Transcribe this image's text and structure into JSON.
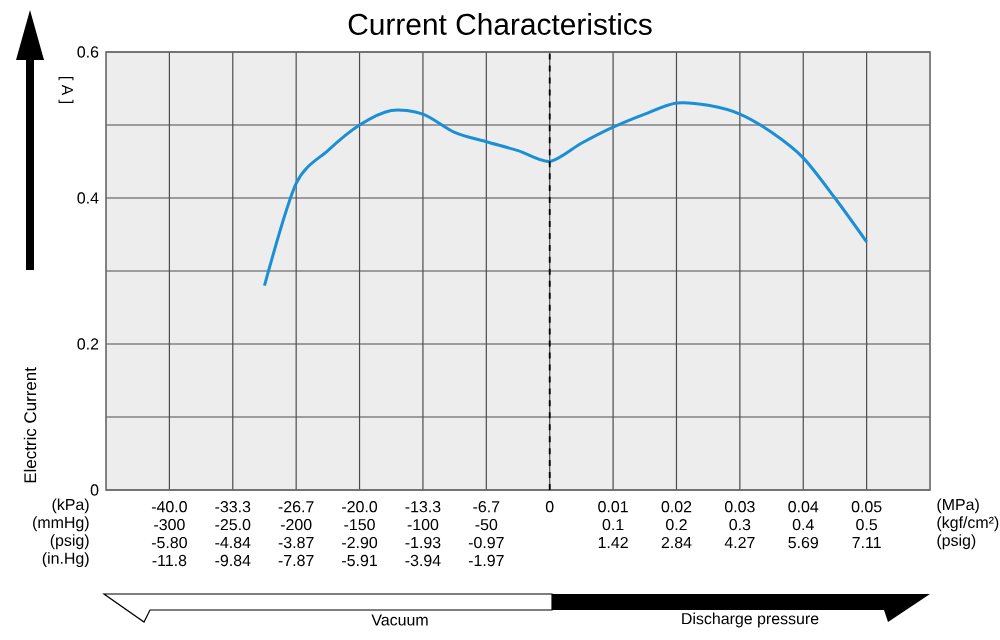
{
  "chart_data": {
    "type": "line",
    "title": "Current Characteristics",
    "ylabel": "Electric Current",
    "categories": [
      null,
      null,
      "-40.0\n-300\n-5.80\n-11.8",
      null,
      "-33.3\n-25.0\n-4.84\n-9.84",
      null,
      "-26.7\n-200\n-3.87\n-7.87",
      null,
      "-20.0\n-150\n-2.90\n-5.91",
      null,
      "-13.3\n-100\n-1.93\n-3.94",
      null,
      "-6.7\n-50\n-0.97\n-1.97",
      null,
      "0",
      null,
      "0.01\n0.1\n1.42",
      null,
      "0.02\n0.2\n2.84",
      null,
      "0.03\n0.3\n4.27",
      null,
      "0.04\n0.4\n5.69",
      null,
      "0.05\n0.5\n7.11",
      null,
      null
    ],
    "series": [
      {
        "color": "#1a8fd6",
        "values": [
          null,
          null,
          null,
          null,
          null,
          0.28,
          0.42,
          0.465,
          0.5,
          0.52,
          0.515,
          0.49,
          0.477,
          0.465,
          0.45,
          0.475,
          0.497,
          0.515,
          0.53,
          0.527,
          0.515,
          0.49,
          0.455,
          0.4,
          0.34,
          null,
          null
        ]
      }
    ],
    "ylim": [
      0,
      0.6
    ],
    "yticks": [
      0,
      {
        "value": 0.1,
        "label": null
      },
      0.2,
      {
        "value": 0.3,
        "label": null
      },
      0.4,
      {
        "value": 0.5,
        "label": null
      },
      0.6
    ],
    "grid": true,
    "ref_lines": [
      {
        "axis": "x",
        "value": "0",
        "line_style": "dashed"
      }
    ],
    "annotations": [
      "[ A ]",
      "(kPa)\n(mmHg)\n(psig)\n(in.Hg)",
      "(MPa)\n(kgf/cm²)\n(psig)",
      "Vacuum",
      "Discharge pressure"
    ]
  }
}
